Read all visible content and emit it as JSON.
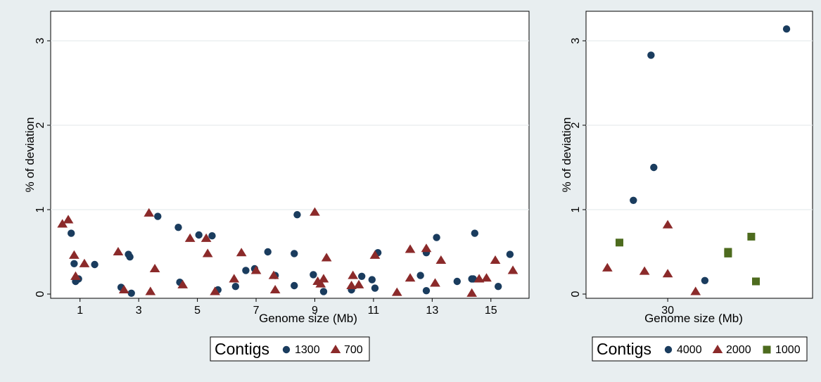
{
  "chart_data": [
    {
      "type": "scatter",
      "xlabel": "Genome size (Mb)",
      "ylabel": "% of deviation",
      "xlim": [
        0,
        16.3
      ],
      "ylim": [
        -0.05,
        3.35
      ],
      "x_ticks": [
        1,
        3,
        5,
        7,
        9,
        11,
        13,
        15
      ],
      "y_ticks": [
        0,
        1,
        2,
        3
      ],
      "grid": true,
      "legend": {
        "title": "Contigs",
        "position": "bottom-center"
      },
      "series": [
        {
          "name": "1300",
          "marker": "circle",
          "color": "#1a3c5e",
          "points": [
            [
              0.7,
              0.72
            ],
            [
              0.8,
              0.36
            ],
            [
              0.85,
              0.15
            ],
            [
              0.95,
              0.18
            ],
            [
              1.5,
              0.35
            ],
            [
              2.4,
              0.08
            ],
            [
              2.65,
              0.47
            ],
            [
              2.7,
              0.44
            ],
            [
              2.75,
              0.01
            ],
            [
              3.65,
              0.92
            ],
            [
              4.35,
              0.79
            ],
            [
              4.4,
              0.14
            ],
            [
              5.05,
              0.7
            ],
            [
              5.5,
              0.69
            ],
            [
              5.7,
              0.05
            ],
            [
              6.3,
              0.09
            ],
            [
              6.65,
              0.28
            ],
            [
              6.95,
              0.3
            ],
            [
              7.4,
              0.5
            ],
            [
              7.65,
              0.22
            ],
            [
              8.3,
              0.48
            ],
            [
              8.3,
              0.1
            ],
            [
              8.4,
              0.94
            ],
            [
              8.95,
              0.23
            ],
            [
              9.3,
              0.03
            ],
            [
              10.25,
              0.05
            ],
            [
              10.6,
              0.21
            ],
            [
              10.95,
              0.17
            ],
            [
              11.05,
              0.07
            ],
            [
              11.15,
              0.49
            ],
            [
              12.6,
              0.22
            ],
            [
              12.8,
              0.49
            ],
            [
              12.8,
              0.04
            ],
            [
              13.15,
              0.67
            ],
            [
              13.85,
              0.15
            ],
            [
              14.35,
              0.18
            ],
            [
              14.4,
              0.18
            ],
            [
              14.45,
              0.72
            ],
            [
              15.25,
              0.09
            ],
            [
              15.65,
              0.47
            ]
          ]
        },
        {
          "name": "700",
          "marker": "triangle",
          "color": "#8b2a2a",
          "points": [
            [
              0.4,
              0.83
            ],
            [
              0.6,
              0.88
            ],
            [
              0.8,
              0.46
            ],
            [
              0.85,
              0.21
            ],
            [
              1.15,
              0.36
            ],
            [
              2.3,
              0.5
            ],
            [
              2.5,
              0.05
            ],
            [
              3.35,
              0.96
            ],
            [
              3.4,
              0.03
            ],
            [
              3.55,
              0.3
            ],
            [
              4.5,
              0.11
            ],
            [
              4.75,
              0.66
            ],
            [
              5.3,
              0.66
            ],
            [
              5.35,
              0.48
            ],
            [
              5.6,
              0.03
            ],
            [
              6.25,
              0.18
            ],
            [
              6.5,
              0.49
            ],
            [
              7.0,
              0.28
            ],
            [
              7.6,
              0.22
            ],
            [
              7.65,
              0.05
            ],
            [
              9.0,
              0.97
            ],
            [
              9.1,
              0.15
            ],
            [
              9.2,
              0.12
            ],
            [
              9.3,
              0.18
            ],
            [
              9.4,
              0.43
            ],
            [
              10.25,
              0.1
            ],
            [
              10.3,
              0.22
            ],
            [
              10.5,
              0.11
            ],
            [
              11.05,
              0.46
            ],
            [
              11.8,
              0.02
            ],
            [
              12.25,
              0.53
            ],
            [
              12.25,
              0.19
            ],
            [
              12.8,
              0.54
            ],
            [
              13.1,
              0.13
            ],
            [
              13.3,
              0.4
            ],
            [
              14.35,
              0.01
            ],
            [
              14.6,
              0.18
            ],
            [
              14.85,
              0.19
            ],
            [
              15.15,
              0.4
            ],
            [
              15.75,
              0.28
            ]
          ]
        }
      ]
    },
    {
      "type": "scatter",
      "xlabel": "Genome size (Mb)",
      "ylabel": "% of deviation",
      "xlim": [
        21.2,
        45.6
      ],
      "ylim": [
        -0.05,
        3.35
      ],
      "x_ticks": [
        30
      ],
      "y_ticks": [
        0,
        1,
        2,
        3
      ],
      "grid": true,
      "legend": {
        "title": "Contigs",
        "position": "bottom-center"
      },
      "series": [
        {
          "name": "4000",
          "marker": "circle",
          "color": "#1a3c5e",
          "points": [
            [
              28.2,
              2.83
            ],
            [
              28.5,
              1.5
            ],
            [
              26.3,
              1.11
            ],
            [
              34.0,
              0.16
            ],
            [
              42.8,
              3.14
            ]
          ]
        },
        {
          "name": "2000",
          "marker": "triangle",
          "color": "#8b2a2a",
          "points": [
            [
              23.5,
              0.31
            ],
            [
              27.5,
              0.27
            ],
            [
              30.0,
              0.82
            ],
            [
              30.0,
              0.24
            ],
            [
              33.0,
              0.03
            ]
          ]
        },
        {
          "name": "1000",
          "marker": "square",
          "color": "#4d6b1e",
          "points": [
            [
              24.8,
              0.61
            ],
            [
              36.5,
              0.5
            ],
            [
              36.5,
              0.48
            ],
            [
              39.0,
              0.68
            ],
            [
              39.5,
              0.15
            ]
          ]
        }
      ]
    }
  ]
}
